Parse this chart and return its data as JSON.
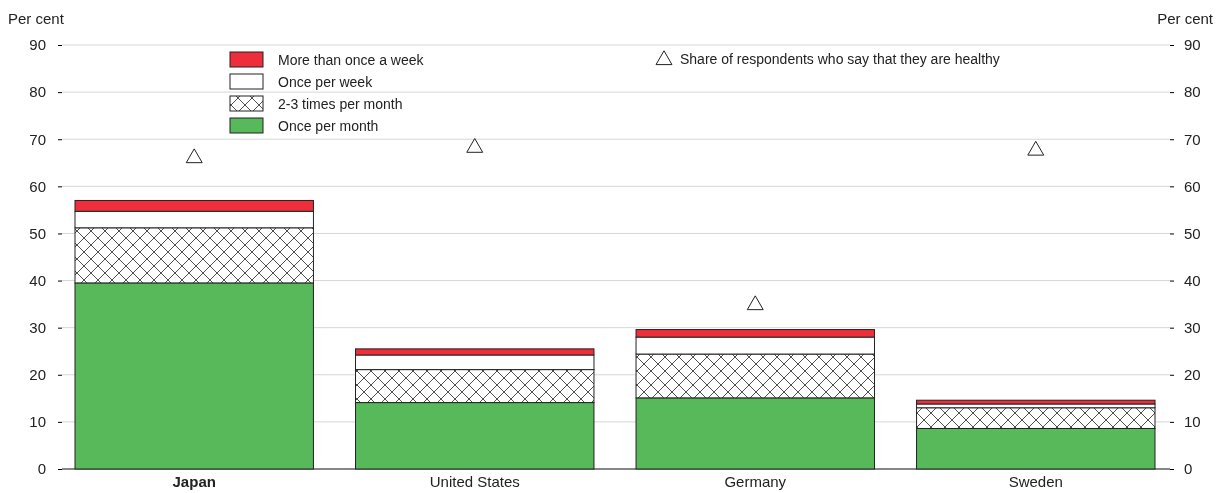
{
  "chart_data": {
    "type": "bar",
    "stacked": true,
    "categories": [
      "Japan",
      "United States",
      "Germany",
      "Sweden"
    ],
    "ylabel": "Per cent",
    "y2label": "Per cent",
    "ylim": [
      0,
      90
    ],
    "yticks": [
      0,
      10,
      20,
      30,
      40,
      50,
      60,
      70,
      80,
      90
    ],
    "y2lim": [
      0,
      90
    ],
    "y2ticks": [
      0,
      10,
      20,
      30,
      40,
      50,
      60,
      70,
      80,
      90
    ],
    "grid": "y",
    "legend": "top",
    "series": [
      {
        "name": "Once per month",
        "color": "#57b95a",
        "values": [
          39.5,
          14.1,
          15.1,
          8.6
        ]
      },
      {
        "name": "2-3 times per month",
        "color": "#222222",
        "values": [
          11.7,
          7.0,
          9.3,
          4.4
        ]
      },
      {
        "name": "Once per week",
        "color": "#ffffff",
        "values": [
          3.5,
          3.1,
          3.6,
          0.8
        ]
      },
      {
        "name": "More than once a week",
        "color": "#ee2e3a",
        "values": [
          2.3,
          1.3,
          1.6,
          0.8
        ]
      },
      {
        "name": "Share of respondents who say that they are healthy",
        "type": "scatter",
        "marker": "triangle",
        "color": "#222222",
        "x": [
          "Japan",
          "United States",
          "Germany",
          "Sweden"
        ],
        "values": [
          66,
          68.2,
          34.8,
          67.6
        ]
      }
    ]
  }
}
